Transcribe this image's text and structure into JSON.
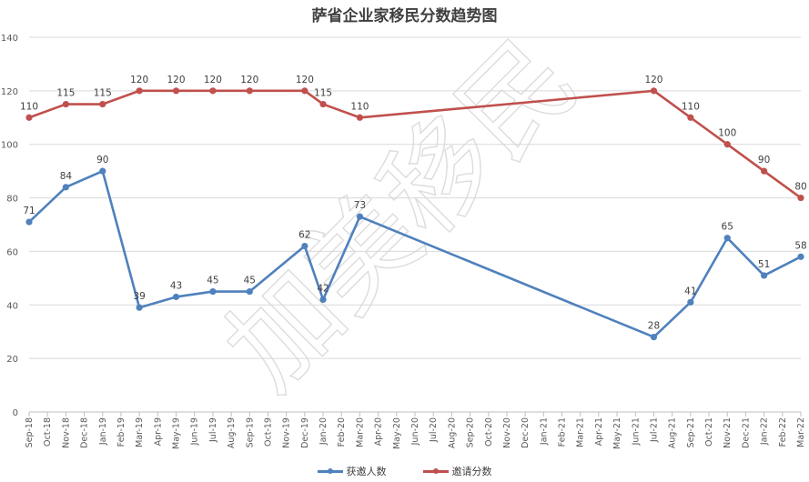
{
  "chart_data": {
    "type": "line",
    "title": "萨省企业家移民分数趋势图",
    "ylim": [
      0,
      140
    ],
    "yticks": [
      0,
      20,
      40,
      60,
      80,
      100,
      120,
      140
    ],
    "grid": true,
    "legend_position": "bottom",
    "watermark": "加美移民",
    "categories": [
      "Sep-18",
      "Oct-18",
      "Nov-18",
      "Dec-18",
      "Jan-19",
      "Feb-19",
      "Mar-19",
      "Apr-19",
      "May-19",
      "Jun-19",
      "Jul-19",
      "Aug-19",
      "Sep-19",
      "Oct-19",
      "Nov-19",
      "Dec-19",
      "Jan-20",
      "Feb-20",
      "Mar-20",
      "Apr-20",
      "May-20",
      "Jun-20",
      "Jul-20",
      "Aug-20",
      "Sep-20",
      "Oct-20",
      "Nov-20",
      "Dec-20",
      "Jan-21",
      "Feb-21",
      "Mar-21",
      "Apr-21",
      "May-21",
      "Jun-21",
      "Jul-21",
      "Aug-21",
      "Sep-21",
      "Oct-21",
      "Nov-21",
      "Dec-21",
      "Jan-22",
      "Feb-22",
      "Mar-22"
    ],
    "series": [
      {
        "name": "获邀人数",
        "color": "#4f81bd",
        "points": [
          {
            "x": 0,
            "y": 71
          },
          {
            "x": 2,
            "y": 84
          },
          {
            "x": 4,
            "y": 90
          },
          {
            "x": 6,
            "y": 39
          },
          {
            "x": 8,
            "y": 43
          },
          {
            "x": 10,
            "y": 45
          },
          {
            "x": 12,
            "y": 45
          },
          {
            "x": 15,
            "y": 62
          },
          {
            "x": 16,
            "y": 42
          },
          {
            "x": 18,
            "y": 73
          },
          {
            "x": 34,
            "y": 28
          },
          {
            "x": 36,
            "y": 41
          },
          {
            "x": 38,
            "y": 65
          },
          {
            "x": 40,
            "y": 51
          },
          {
            "x": 42,
            "y": 58
          }
        ]
      },
      {
        "name": "邀请分数",
        "color": "#c0504d",
        "points": [
          {
            "x": 0,
            "y": 110
          },
          {
            "x": 2,
            "y": 115
          },
          {
            "x": 4,
            "y": 115
          },
          {
            "x": 6,
            "y": 120
          },
          {
            "x": 8,
            "y": 120
          },
          {
            "x": 10,
            "y": 120
          },
          {
            "x": 12,
            "y": 120
          },
          {
            "x": 15,
            "y": 120
          },
          {
            "x": 16,
            "y": 115
          },
          {
            "x": 18,
            "y": 110
          },
          {
            "x": 34,
            "y": 120
          },
          {
            "x": 36,
            "y": 110
          },
          {
            "x": 38,
            "y": 100
          },
          {
            "x": 40,
            "y": 90
          },
          {
            "x": 42,
            "y": 80
          }
        ]
      }
    ]
  }
}
